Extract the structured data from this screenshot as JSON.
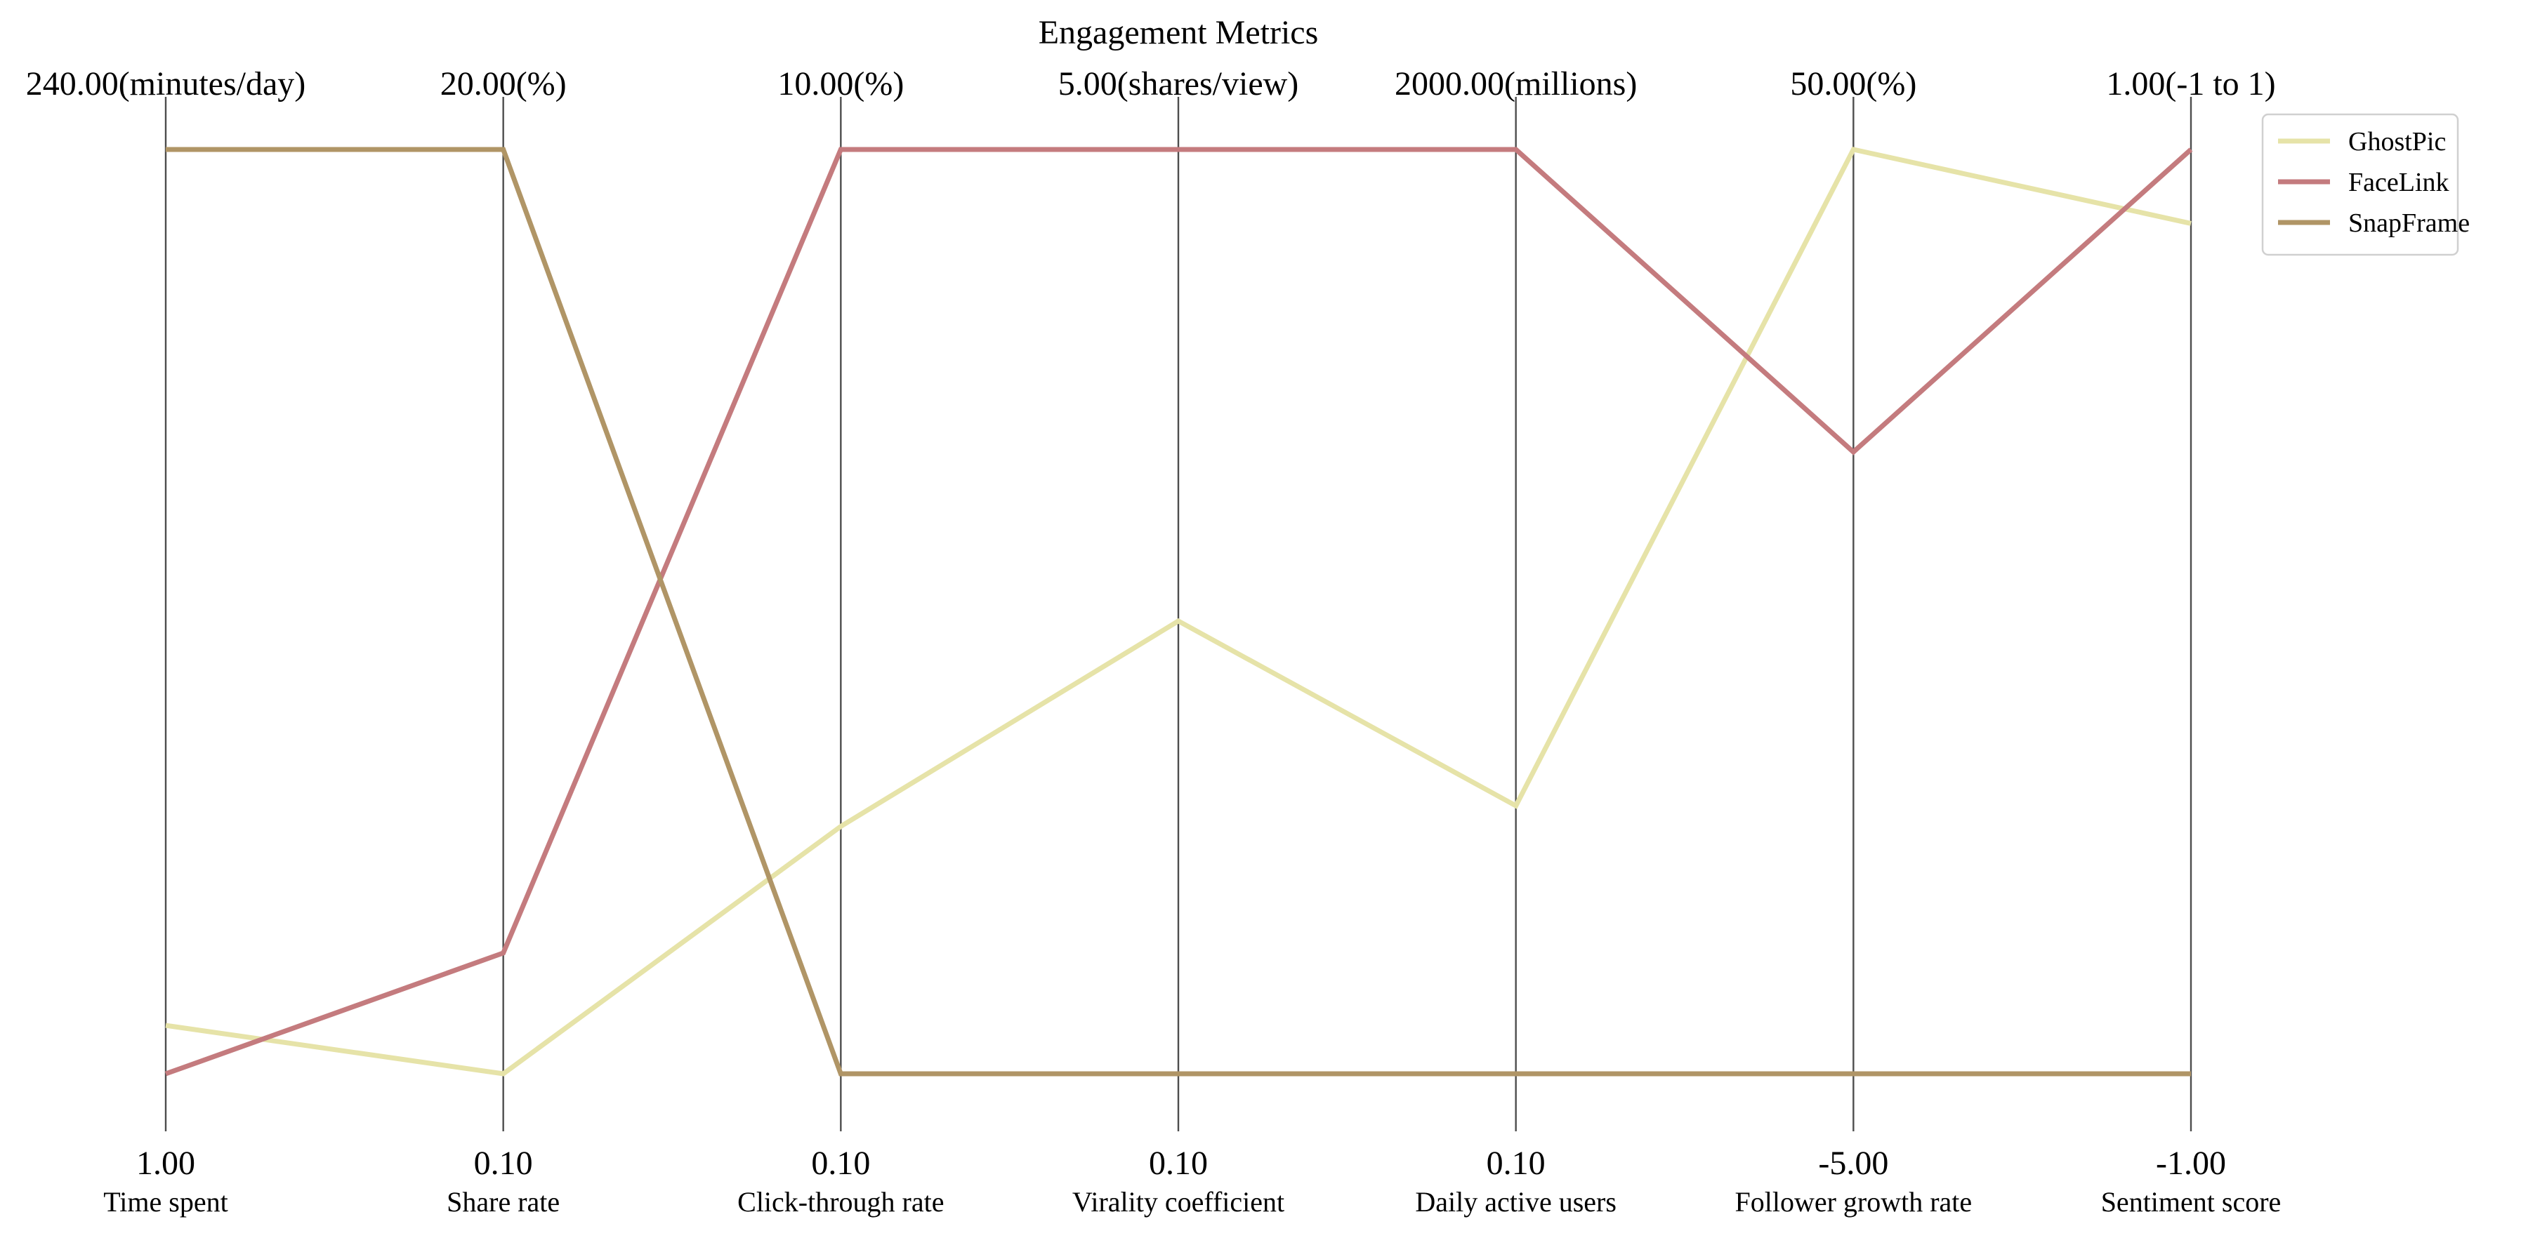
{
  "chart_data": {
    "type": "parallel_coordinates",
    "title": "Engagement Metrics",
    "axes": [
      {
        "label": "Time spent",
        "min": 1.0,
        "max": 240.0,
        "min_label": "1.00",
        "max_label": "240.00(minutes/day)"
      },
      {
        "label": "Share rate",
        "min": 0.1,
        "max": 20.0,
        "min_label": "0.10",
        "max_label": "20.00(%)"
      },
      {
        "label": "Click-through rate",
        "min": 0.1,
        "max": 10.0,
        "min_label": "0.10",
        "max_label": "10.00(%)"
      },
      {
        "label": "Virality coefficient",
        "min": 0.1,
        "max": 5.0,
        "min_label": "0.10",
        "max_label": "5.00(shares/view)"
      },
      {
        "label": "Daily active users",
        "min": 0.1,
        "max": 2000.0,
        "min_label": "0.10",
        "max_label": "2000.00(millions)"
      },
      {
        "label": "Follower growth rate",
        "min": -5.0,
        "max": 50.0,
        "min_label": "-5.00",
        "max_label": "50.00(%)"
      },
      {
        "label": "Sentiment score",
        "min": -1.0,
        "max": 1.0,
        "min_label": "-1.00",
        "max_label": "1.00(-1 to 1)"
      }
    ],
    "series": [
      {
        "name": "GhostPic",
        "color": "#e6e3a8",
        "values": [
          13.5,
          0.1,
          2.75,
          2.5,
          580,
          50.0,
          0.84
        ]
      },
      {
        "name": "FaceLink",
        "color": "#c47b7e",
        "values": [
          1.0,
          2.7,
          10.0,
          5.0,
          2000,
          32.0,
          1.0
        ]
      },
      {
        "name": "SnapFrame",
        "color": "#b09566",
        "values": [
          240.0,
          20.0,
          0.1,
          0.1,
          0.1,
          -5.0,
          -1.0
        ]
      }
    ],
    "legend_position": "top-right",
    "grid": false
  }
}
